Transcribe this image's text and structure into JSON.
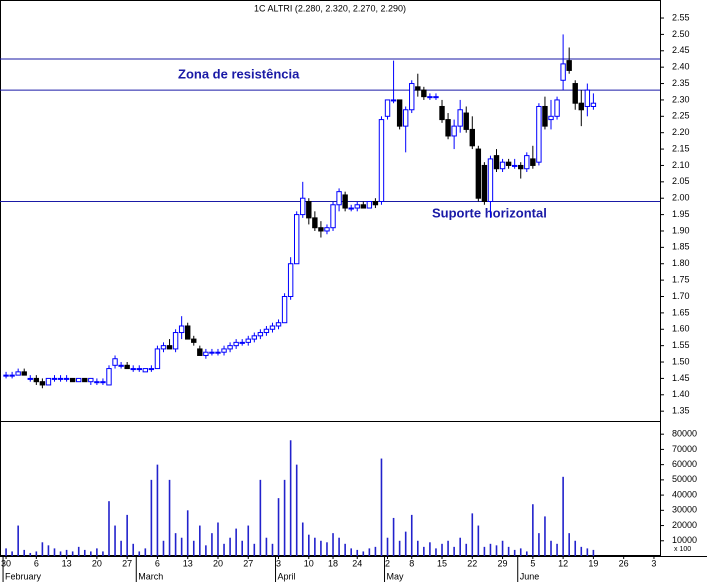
{
  "chart_data": {
    "type": "candlestick",
    "title": "1C ALTRI (2.280, 2.320, 2.270, 2.290)",
    "annotations": [
      "Zona de resistência",
      "Suporte horizontal"
    ],
    "hlines": [
      2.425,
      2.33,
      1.99
    ],
    "categories": [
      "30",
      null,
      null,
      null,
      null,
      "6",
      null,
      null,
      null,
      null,
      "13",
      null,
      null,
      null,
      null,
      "20",
      null,
      null,
      null,
      null,
      "27",
      null,
      null,
      null,
      null,
      "6",
      null,
      null,
      null,
      null,
      "13",
      null,
      null,
      null,
      null,
      "20",
      null,
      null,
      null,
      null,
      "27",
      null,
      null,
      null,
      null,
      "3",
      null,
      null,
      null,
      null,
      "10",
      null,
      null,
      null,
      "18",
      null,
      null,
      null,
      "24",
      null,
      null,
      null,
      null,
      "2",
      null,
      null,
      null,
      "8",
      null,
      null,
      null,
      null,
      "15",
      null,
      null,
      null,
      null,
      "22",
      null,
      null,
      null,
      null,
      "29",
      null,
      null,
      null,
      null,
      "5",
      null,
      null,
      null,
      null,
      "12",
      null,
      null,
      null,
      null,
      "19",
      null,
      null,
      null,
      null,
      "26",
      null,
      null,
      null,
      null,
      "3"
    ],
    "months": [
      {
        "value": 0,
        "label": "February"
      },
      {
        "value": 22,
        "label": "March"
      },
      {
        "value": 45,
        "label": "April"
      },
      {
        "value": 63,
        "label": "May"
      },
      {
        "value": 85,
        "label": "June"
      }
    ],
    "open": [
      1.46,
      1.46,
      1.46,
      1.47,
      1.45,
      1.45,
      1.44,
      1.43,
      1.45,
      1.45,
      1.45,
      1.45,
      1.44,
      1.45,
      1.44,
      1.44,
      1.44,
      1.43,
      1.49,
      1.49,
      1.49,
      1.48,
      1.48,
      1.47,
      1.48,
      1.48,
      1.54,
      1.55,
      1.54,
      1.59,
      1.61,
      1.57,
      1.54,
      1.52,
      1.53,
      1.53,
      1.53,
      1.54,
      1.55,
      1.56,
      1.56,
      1.57,
      1.58,
      1.59,
      1.6,
      1.61,
      1.62,
      1.7,
      1.8,
      1.95,
      1.99,
      1.94,
      1.91,
      1.9,
      1.91,
      1.98,
      2.01,
      1.97,
      1.97,
      1.98,
      1.97,
      1.99,
      1.99,
      2.25,
      2.3,
      2.3,
      2.22,
      2.27,
      2.34,
      2.33,
      2.31,
      2.31,
      2.28,
      2.24,
      2.19,
      2.22,
      2.26,
      2.21,
      2.15,
      2.1,
      1.99,
      2.13,
      2.09,
      2.11,
      2.1,
      2.1,
      2.09,
      2.12,
      2.11,
      2.28,
      2.24,
      2.25,
      2.36,
      2.42,
      2.35,
      2.29,
      2.28,
      2.28,
      null,
      null,
      null,
      null,
      null,
      null,
      null,
      null,
      null,
      null
    ],
    "high": [
      1.47,
      1.47,
      1.48,
      1.48,
      1.46,
      1.46,
      1.45,
      1.45,
      1.46,
      1.46,
      1.46,
      1.45,
      1.45,
      1.45,
      1.45,
      1.45,
      1.45,
      1.49,
      1.52,
      1.5,
      1.5,
      1.49,
      1.49,
      1.48,
      1.49,
      1.55,
      1.56,
      1.57,
      1.6,
      1.64,
      1.62,
      1.58,
      1.55,
      1.54,
      1.54,
      1.54,
      1.55,
      1.56,
      1.57,
      1.57,
      1.58,
      1.59,
      1.6,
      1.61,
      1.62,
      1.63,
      1.71,
      1.82,
      1.96,
      2.05,
      2.0,
      1.96,
      1.93,
      1.92,
      1.99,
      2.03,
      2.02,
      1.98,
      1.99,
      1.99,
      1.99,
      2.0,
      2.25,
      2.3,
      2.42,
      2.3,
      2.28,
      2.36,
      2.38,
      2.34,
      2.32,
      2.32,
      2.3,
      2.26,
      2.24,
      2.3,
      2.28,
      2.25,
      2.16,
      2.11,
      2.13,
      2.15,
      2.12,
      2.12,
      2.12,
      2.11,
      2.14,
      2.16,
      2.29,
      2.31,
      2.3,
      2.31,
      2.5,
      2.46,
      2.36,
      2.33,
      2.35,
      2.32,
      null,
      null,
      null,
      null,
      null,
      null,
      null,
      null,
      null,
      null
    ],
    "low": [
      1.45,
      1.45,
      1.46,
      1.46,
      1.44,
      1.43,
      1.42,
      1.43,
      1.44,
      1.44,
      1.44,
      1.44,
      1.44,
      1.44,
      1.43,
      1.43,
      1.43,
      1.43,
      1.48,
      1.48,
      1.48,
      1.47,
      1.47,
      1.47,
      1.47,
      1.48,
      1.53,
      1.54,
      1.53,
      1.57,
      1.57,
      1.55,
      1.52,
      1.51,
      1.52,
      1.52,
      1.52,
      1.53,
      1.54,
      1.55,
      1.55,
      1.56,
      1.57,
      1.58,
      1.59,
      1.6,
      1.62,
      1.69,
      1.8,
      1.94,
      1.92,
      1.9,
      1.88,
      1.89,
      1.9,
      1.96,
      1.96,
      1.96,
      1.96,
      1.97,
      1.97,
      1.97,
      1.98,
      2.24,
      2.29,
      2.21,
      2.14,
      2.26,
      2.31,
      2.3,
      2.3,
      2.3,
      2.23,
      2.18,
      2.15,
      2.2,
      2.2,
      2.15,
      1.99,
      1.98,
      1.94,
      2.08,
      2.08,
      2.09,
      2.09,
      2.06,
      2.08,
      2.09,
      2.1,
      2.21,
      2.21,
      2.24,
      2.33,
      2.38,
      2.27,
      2.22,
      2.25,
      2.27,
      null,
      null,
      null,
      null,
      null,
      null,
      null,
      null,
      null,
      null
    ],
    "close": [
      1.46,
      1.46,
      1.47,
      1.46,
      1.45,
      1.44,
      1.43,
      1.45,
      1.45,
      1.45,
      1.45,
      1.44,
      1.45,
      1.44,
      1.45,
      1.44,
      1.44,
      1.48,
      1.51,
      1.49,
      1.48,
      1.48,
      1.48,
      1.48,
      1.48,
      1.54,
      1.55,
      1.54,
      1.59,
      1.61,
      1.57,
      1.56,
      1.52,
      1.53,
      1.53,
      1.53,
      1.54,
      1.55,
      1.56,
      1.56,
      1.57,
      1.58,
      1.59,
      1.6,
      1.61,
      1.62,
      1.7,
      1.8,
      1.95,
      2.0,
      1.94,
      1.91,
      1.9,
      1.91,
      1.98,
      2.02,
      1.97,
      1.97,
      1.98,
      1.97,
      1.99,
      1.98,
      2.24,
      2.3,
      2.3,
      2.22,
      2.27,
      2.35,
      2.33,
      2.31,
      2.31,
      2.31,
      2.24,
      2.19,
      2.22,
      2.27,
      2.21,
      2.16,
      2.0,
      1.99,
      2.12,
      2.09,
      2.11,
      2.1,
      2.1,
      2.09,
      2.13,
      2.1,
      2.28,
      2.22,
      2.25,
      2.3,
      2.41,
      2.39,
      2.29,
      2.27,
      2.33,
      2.29,
      null,
      null,
      null,
      null,
      null,
      null,
      null,
      null,
      null,
      null
    ],
    "volume": [
      5000,
      3000,
      20000,
      4000,
      2000,
      3000,
      9000,
      7000,
      5000,
      3000,
      4000,
      3000,
      6000,
      4000,
      3000,
      5000,
      3000,
      36000,
      20000,
      10000,
      27000,
      8000,
      3000,
      5000,
      50000,
      60000,
      10000,
      50000,
      15000,
      12000,
      30000,
      10000,
      20000,
      7000,
      15000,
      22000,
      8000,
      12000,
      18000,
      10000,
      20000,
      8000,
      50000,
      12000,
      8000,
      38000,
      50000,
      76000,
      60000,
      22000,
      14000,
      12000,
      10000,
      9000,
      15000,
      12000,
      8000,
      5000,
      4000,
      3000,
      5000,
      6000,
      64000,
      12000,
      25000,
      10000,
      16000,
      27000,
      10000,
      6000,
      9000,
      5000,
      8000,
      10000,
      6000,
      12000,
      8000,
      28000,
      20000,
      6000,
      8000,
      7000,
      10000,
      6000,
      4000,
      5000,
      3000,
      34000,
      15000,
      26000,
      10000,
      8000,
      52000,
      15000,
      10000,
      6000,
      5000,
      4000,
      null,
      null,
      null,
      null,
      null,
      null,
      null,
      null,
      null,
      null
    ],
    "volume_unit": "x 100",
    "up_color": "#0000ff",
    "down_color": "#000000",
    "volume_color": "#2222cc",
    "line_color": "#1a1aa6",
    "xlim": [
      -1,
      108
    ],
    "ylim": [
      1.32,
      2.605
    ],
    "yticks": [
      {
        "value": 1.35,
        "label": "1.35"
      },
      {
        "value": 1.4,
        "label": "1.40"
      },
      1.45,
      {
        "value": 1.5,
        "label": "1.50"
      },
      1.55,
      {
        "value": 1.6,
        "label": "1.60"
      },
      1.65,
      {
        "value": 1.7,
        "label": "1.70"
      },
      1.75,
      {
        "value": 1.8,
        "label": "1.80"
      },
      1.85,
      {
        "value": 1.9,
        "label": "1.90"
      },
      1.95,
      {
        "value": 2.0,
        "label": "2.00"
      },
      2.05,
      {
        "value": 2.1,
        "label": "2.10"
      },
      2.15,
      {
        "value": 2.2,
        "label": "2.20"
      },
      2.25,
      {
        "value": 2.3,
        "label": "2.30"
      },
      2.35,
      {
        "value": 2.4,
        "label": "2.40"
      },
      2.45,
      {
        "value": 2.5,
        "label": "2.50"
      },
      2.55
    ],
    "y2lim": [
      0,
      88000
    ],
    "y2ticks": [
      10000,
      20000,
      30000,
      40000,
      50000,
      60000,
      70000,
      80000
    ]
  }
}
